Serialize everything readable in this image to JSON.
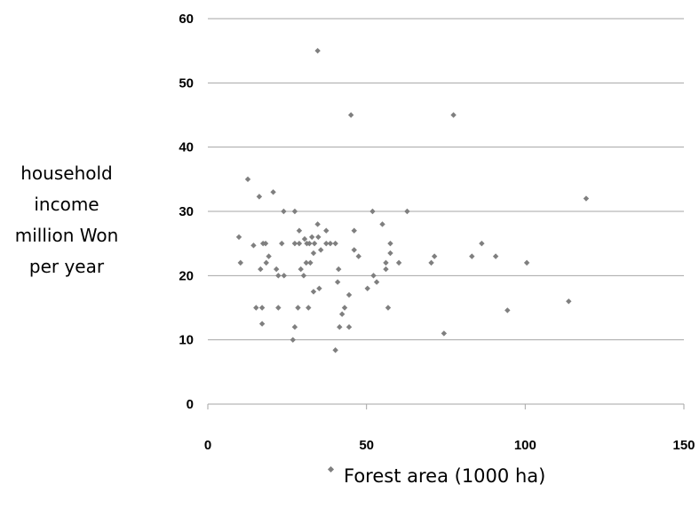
{
  "chart_data": {
    "type": "scatter",
    "title": "",
    "ylabel_lines": [
      "household",
      "income",
      "million Won",
      "per year"
    ],
    "legend": {
      "label": "Forest area (1000 ha)",
      "placement": "bottom"
    },
    "xlim": [
      0,
      150
    ],
    "ylim": [
      0,
      60
    ],
    "x_ticks": [
      "0",
      "50",
      "100",
      "150"
    ],
    "y_ticks": [
      "0",
      "10",
      "20",
      "30",
      "40",
      "50",
      "60"
    ],
    "grid": "horizontal",
    "marker_color": "#7f7f7f",
    "gridline_color": "#a6a6a6",
    "series": [
      {
        "points": [
          [
            34.6,
            55
          ],
          [
            45.1,
            45
          ],
          [
            77.4,
            45
          ],
          [
            119.2,
            32
          ],
          [
            12.6,
            35
          ],
          [
            16.2,
            32.3
          ],
          [
            20.6,
            33
          ],
          [
            23.9,
            30
          ],
          [
            27.4,
            30
          ],
          [
            62.8,
            30
          ],
          [
            51.9,
            30
          ],
          [
            9.8,
            26
          ],
          [
            14.4,
            24.7
          ],
          [
            17.4,
            25
          ],
          [
            18.2,
            25
          ],
          [
            23.3,
            25
          ],
          [
            27.4,
            25
          ],
          [
            28.8,
            25
          ],
          [
            31.2,
            25
          ],
          [
            32.0,
            25
          ],
          [
            33.6,
            25
          ],
          [
            37.3,
            25
          ],
          [
            38.6,
            25
          ],
          [
            40.2,
            25
          ],
          [
            28.8,
            27
          ],
          [
            30.5,
            25.7
          ],
          [
            32.8,
            26
          ],
          [
            34.8,
            26
          ],
          [
            34.6,
            28
          ],
          [
            37.3,
            27
          ],
          [
            35.6,
            24
          ],
          [
            33.3,
            23.5
          ],
          [
            31.0,
            22
          ],
          [
            32.3,
            22
          ],
          [
            29.3,
            21
          ],
          [
            19.2,
            23
          ],
          [
            18.4,
            22
          ],
          [
            10.3,
            22
          ],
          [
            16.6,
            21
          ],
          [
            21.6,
            21
          ],
          [
            22.2,
            20
          ],
          [
            24.0,
            20
          ],
          [
            30.2,
            20
          ],
          [
            41.2,
            21
          ],
          [
            33.3,
            17.5
          ],
          [
            35.1,
            18
          ],
          [
            40.9,
            19
          ],
          [
            44.5,
            17
          ],
          [
            46.1,
            27
          ],
          [
            46.1,
            24
          ],
          [
            47.5,
            23
          ],
          [
            55.0,
            28
          ],
          [
            57.5,
            25
          ],
          [
            57.5,
            23.5
          ],
          [
            56.1,
            21
          ],
          [
            56.1,
            22
          ],
          [
            60.2,
            22
          ],
          [
            52.2,
            20
          ],
          [
            53.2,
            19
          ],
          [
            50.3,
            18
          ],
          [
            70.4,
            22
          ],
          [
            71.4,
            23
          ],
          [
            83.2,
            23
          ],
          [
            86.3,
            25
          ],
          [
            90.7,
            23
          ],
          [
            100.5,
            22
          ],
          [
            15.2,
            15
          ],
          [
            17.1,
            15
          ],
          [
            22.2,
            15
          ],
          [
            28.4,
            15
          ],
          [
            31.7,
            15
          ],
          [
            43.1,
            15
          ],
          [
            42.3,
            14
          ],
          [
            44.5,
            12
          ],
          [
            41.5,
            12
          ],
          [
            27.4,
            12
          ],
          [
            17.1,
            12.5
          ],
          [
            56.8,
            15
          ],
          [
            74.4,
            11
          ],
          [
            94.4,
            14.6
          ],
          [
            113.7,
            16
          ],
          [
            26.8,
            10
          ],
          [
            40.2,
            8.4
          ]
        ]
      }
    ]
  }
}
